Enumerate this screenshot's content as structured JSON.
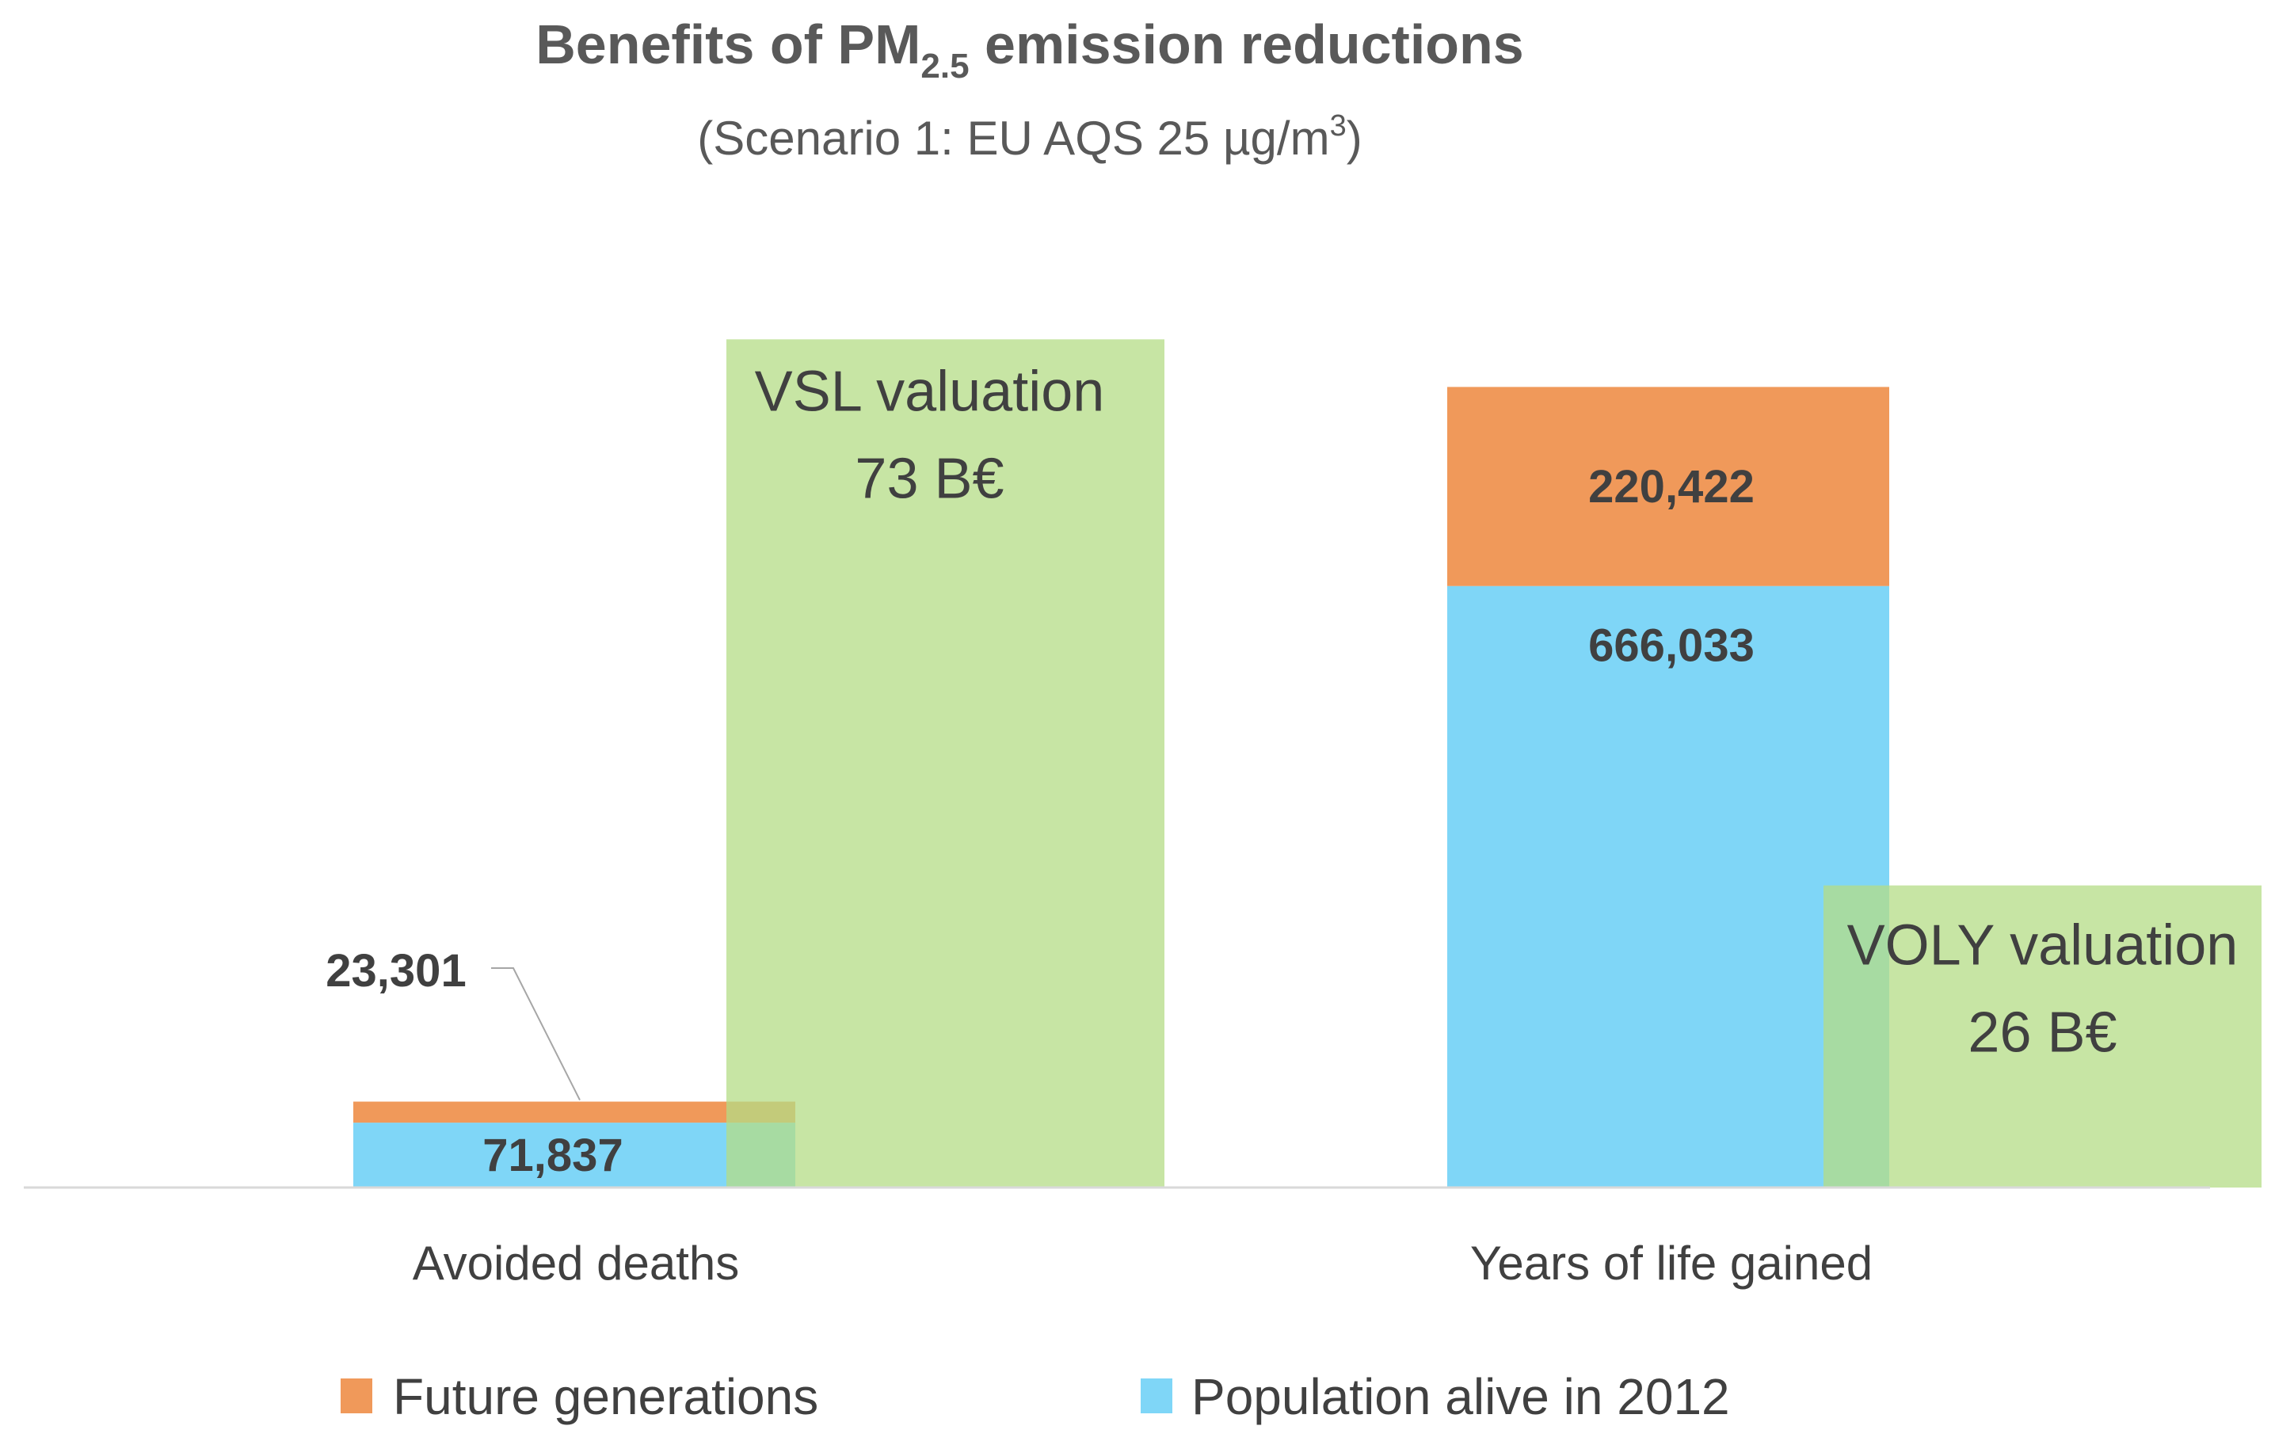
{
  "chart_data": {
    "type": "bar",
    "title": {
      "prefix": "Benefits of PM",
      "subscript": "2.5",
      "suffix": " emission reductions"
    },
    "subtitle": {
      "prefix": "(Scenario 1: EU AQS 25 µg/m",
      "superscript": "3",
      "suffix": ")"
    },
    "stacked": true,
    "categories": [
      "Avoided deaths",
      "Years of life gained"
    ],
    "series": [
      {
        "name": "Population alive in 2012",
        "color": "#7fd6f7",
        "values": [
          71837,
          666033
        ],
        "labels": [
          "71,837",
          "666,033"
        ]
      },
      {
        "name": "Future generations",
        "color": "#f0995a",
        "values": [
          23301,
          220422
        ],
        "labels": [
          "23,301",
          "220,422"
        ]
      }
    ],
    "legend_order": [
      "Future generations",
      "Population alive in 2012"
    ],
    "ylim": [
      0,
      1000000
    ],
    "overlays": [
      {
        "name": "VSL valuation",
        "value_label": "73 B€",
        "value": 73,
        "category": "Avoided deaths",
        "color": "#b4dc86"
      },
      {
        "name": "VOLY valuation",
        "value_label": "26 B€",
        "value": 26,
        "category": "Years of life gained",
        "color": "#b4dc86"
      }
    ],
    "overlay_ylim": [
      0,
      75
    ],
    "axis_color": "#d9d9d9",
    "callout_color": "#a6a6a6"
  }
}
